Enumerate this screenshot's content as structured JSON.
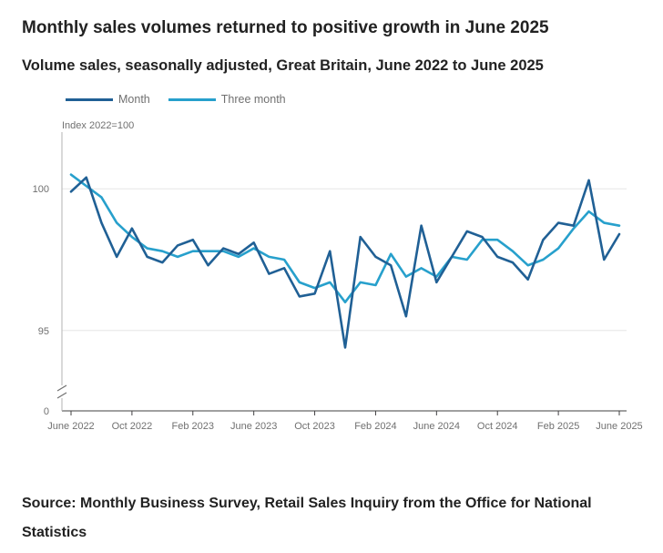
{
  "title": "Monthly sales volumes returned to positive growth in June 2025",
  "subtitle": "Volume sales, seasonally adjusted, Great Britain, June 2022 to June 2025",
  "source": "Source: Monthly Business Survey, Retail Sales Inquiry from the Office for National Statistics",
  "colors": {
    "month": "#206095",
    "three_month": "#27a0cc",
    "grid": "#e6e6e6",
    "axis": "#414042"
  },
  "legend": [
    {
      "label": "Month",
      "color": "#206095"
    },
    {
      "label": "Three month",
      "color": "#27a0cc"
    }
  ],
  "chart_data": {
    "type": "line",
    "title": "Monthly sales volumes returned to positive growth in June 2025",
    "subtitle": "Volume sales, seasonally adjusted, Great Britain, June 2022 to June 2025",
    "ylabel": "Index 2022=100",
    "xlabel": "",
    "ylim": [
      93,
      102
    ],
    "y_axis_break": true,
    "y_ticks": [
      0,
      95,
      100
    ],
    "grid": true,
    "x_tick_labels": [
      {
        "index": 0,
        "label": "June 2022"
      },
      {
        "index": 4,
        "label": "Oct 2022"
      },
      {
        "index": 8,
        "label": "Feb 2023"
      },
      {
        "index": 12,
        "label": "June 2023"
      },
      {
        "index": 16,
        "label": "Oct 2023"
      },
      {
        "index": 20,
        "label": "Feb 2024"
      },
      {
        "index": 24,
        "label": "June 2024"
      },
      {
        "index": 28,
        "label": "Oct 2024"
      },
      {
        "index": 32,
        "label": "Feb 2025"
      },
      {
        "index": 36,
        "label": "June 2025"
      }
    ],
    "series": [
      {
        "name": "Month",
        "color": "#206095",
        "values": [
          99.9,
          100.4,
          98.8,
          97.6,
          98.6,
          97.6,
          97.4,
          98.0,
          98.2,
          97.3,
          97.9,
          97.7,
          98.1,
          97.0,
          97.2,
          96.2,
          96.3,
          97.8,
          94.4,
          98.3,
          97.6,
          97.3,
          95.5,
          98.7,
          96.7,
          97.6,
          98.5,
          98.3,
          97.6,
          97.4,
          96.8,
          98.2,
          98.8,
          98.7,
          100.3,
          97.5,
          98.4
        ]
      },
      {
        "name": "Three month",
        "color": "#27a0cc",
        "values": [
          100.5,
          100.1,
          99.7,
          98.8,
          98.3,
          97.9,
          97.8,
          97.6,
          97.8,
          97.8,
          97.8,
          97.6,
          97.9,
          97.6,
          97.5,
          96.7,
          96.5,
          96.7,
          96.0,
          96.7,
          96.6,
          97.7,
          96.9,
          97.2,
          96.9,
          97.6,
          97.5,
          98.2,
          98.2,
          97.8,
          97.3,
          97.5,
          97.9,
          98.6,
          99.2,
          98.8,
          98.7
        ]
      }
    ]
  }
}
